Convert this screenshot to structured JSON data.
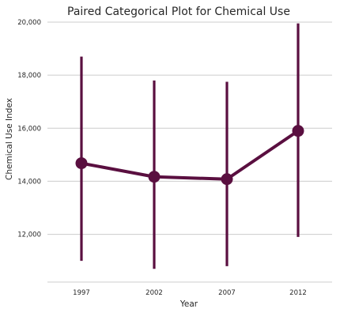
{
  "chart_data": {
    "type": "line",
    "title": "Paired Categorical Plot for Chemical Use",
    "xlabel": "Year",
    "ylabel": "Chemical Use Index",
    "categories": [
      "1997",
      "2002",
      "2007",
      "2012"
    ],
    "series": [
      {
        "values": [
          14680,
          14170,
          14080,
          15900
        ],
        "error_low": [
          11000,
          10700,
          10800,
          11900
        ],
        "error_high": [
          18700,
          17800,
          17750,
          19950
        ]
      }
    ],
    "ylim": [
      10200,
      20000
    ],
    "yticks": [
      12000,
      14000,
      16000,
      18000,
      20000
    ],
    "ytick_labels": [
      "12,000",
      "14,000",
      "16,000",
      "18,000",
      "20,000"
    ],
    "grid": "horizontal",
    "color": "#5a0f40"
  }
}
